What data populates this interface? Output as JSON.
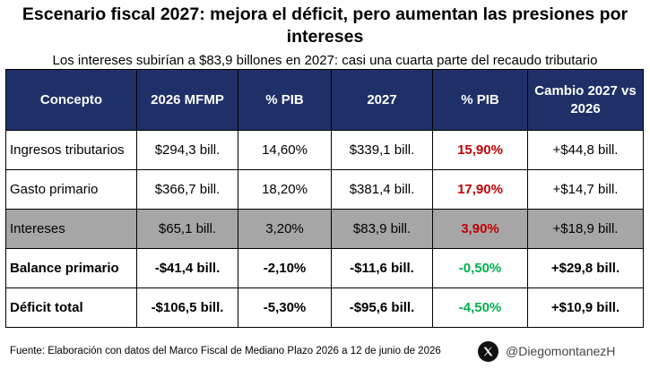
{
  "title_line1": "Escenario fiscal 2027: mejora el déficit, pero aumentan las presiones por",
  "title_line2": "intereses",
  "subtitle": "Los intereses subirían a $83,9 billones en 2027: casi una cuarta parte del recaudo tributario",
  "table": {
    "headers": [
      "Concepto",
      "2026 MFMP",
      "% PIB",
      "2027",
      "% PIB",
      "Cambio 2027 vs 2026"
    ],
    "rows": [
      [
        "Ingresos tributarios",
        "$294,3 bill.",
        "14,60%",
        "$339,1 bill.",
        "15,90%",
        "+$44,8 bill."
      ],
      [
        "Gasto primario",
        "$366,7 bill.",
        "18,20%",
        "$381,4 bill.",
        "17,90%",
        "+$14,7 bill."
      ],
      [
        "Intereses",
        "$65,1 bill.",
        "3,20%",
        "$83,9 bill.",
        "3,90%",
        "+$18,9 bill."
      ],
      [
        "Balance primario",
        "-$41,4 bill.",
        "-2,10%",
        "-$11,6 bill.",
        "-0,50%",
        "+$29,8 bill."
      ],
      [
        "Déficit total",
        "-$106,5 bill.",
        "-5,30%",
        "-$95,6 bill.",
        "-4,50%",
        "+$10,9 bill."
      ]
    ]
  },
  "colors": {
    "header_bg": "#1f3068",
    "shaded_row": "#a6a6a6",
    "negative_red": "#c00000",
    "positive_green": "#00b050"
  },
  "footer": {
    "source": "Fuente: Elaboración con datos del Marco Fiscal de Mediano Plazo 2026 a 12 de junio de 2026",
    "handle": "@DiegomontanezH",
    "logo_icon": "x-logo-icon"
  }
}
